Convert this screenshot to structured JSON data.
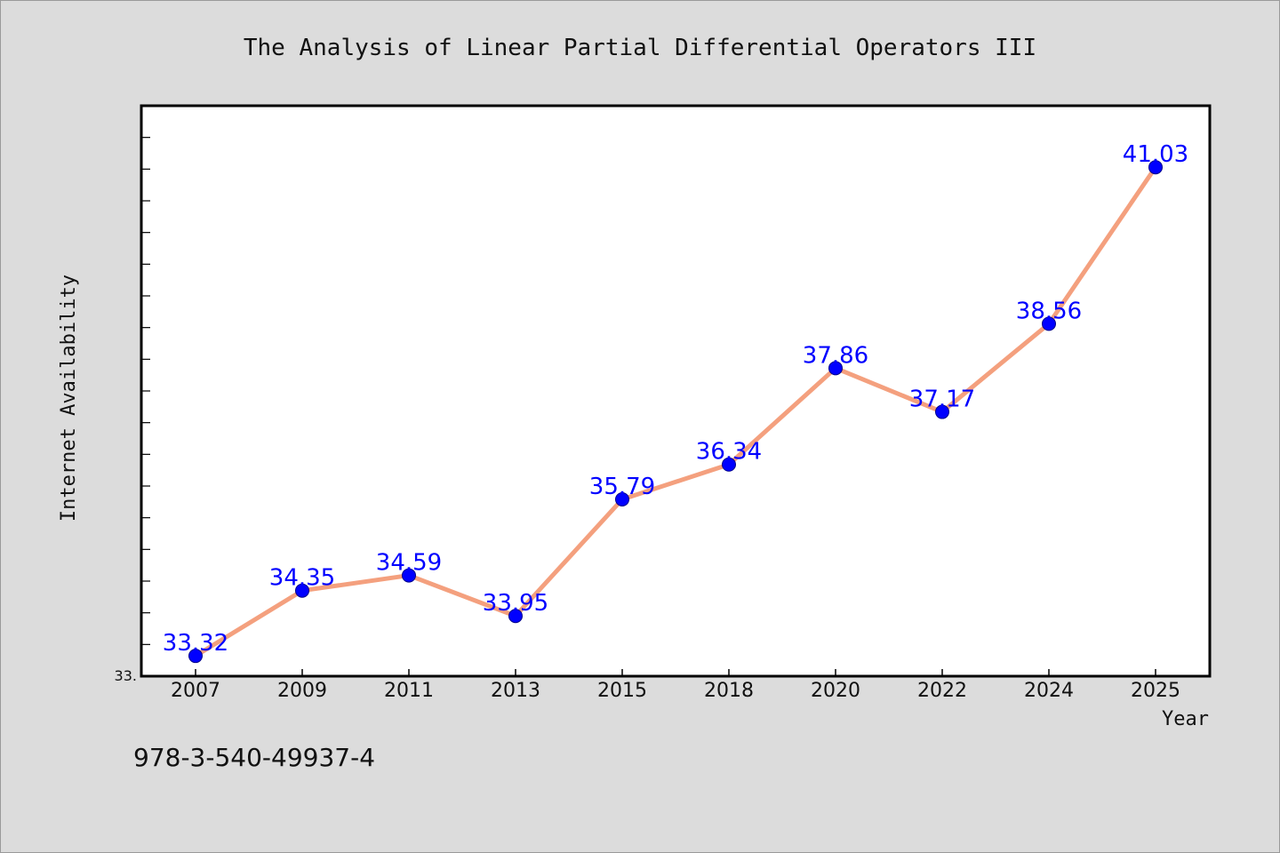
{
  "chart_data": {
    "type": "line",
    "title": "The Analysis of Linear Partial Differential Operators III",
    "xlabel": "Year",
    "ylabel": "Internet Availability",
    "categories": [
      "2007",
      "2009",
      "2011",
      "2013",
      "2015",
      "2018",
      "2020",
      "2022",
      "2024",
      "2025"
    ],
    "series": [
      {
        "values": [
          33.32,
          34.35,
          34.59,
          33.95,
          35.79,
          36.34,
          37.86,
          37.17,
          38.56,
          41.03
        ]
      }
    ],
    "data_labels": [
      "33.32",
      "34.35",
      "34.59",
      "33.95",
      "35.79",
      "36.34",
      "37.86",
      "37.17",
      "38.56",
      "41.03"
    ],
    "ylim": [
      33.0,
      42.0
    ],
    "y_min_label": "33.",
    "grid": false,
    "legend": "none",
    "colors": {
      "line": "#f4a07e",
      "marker": "#0000ff",
      "data_label": "#0000ff",
      "plot_background": "#ffffff",
      "figure_background": "#dcdcdc"
    }
  },
  "footer": {
    "isbn": "978-3-540-49937-4"
  }
}
